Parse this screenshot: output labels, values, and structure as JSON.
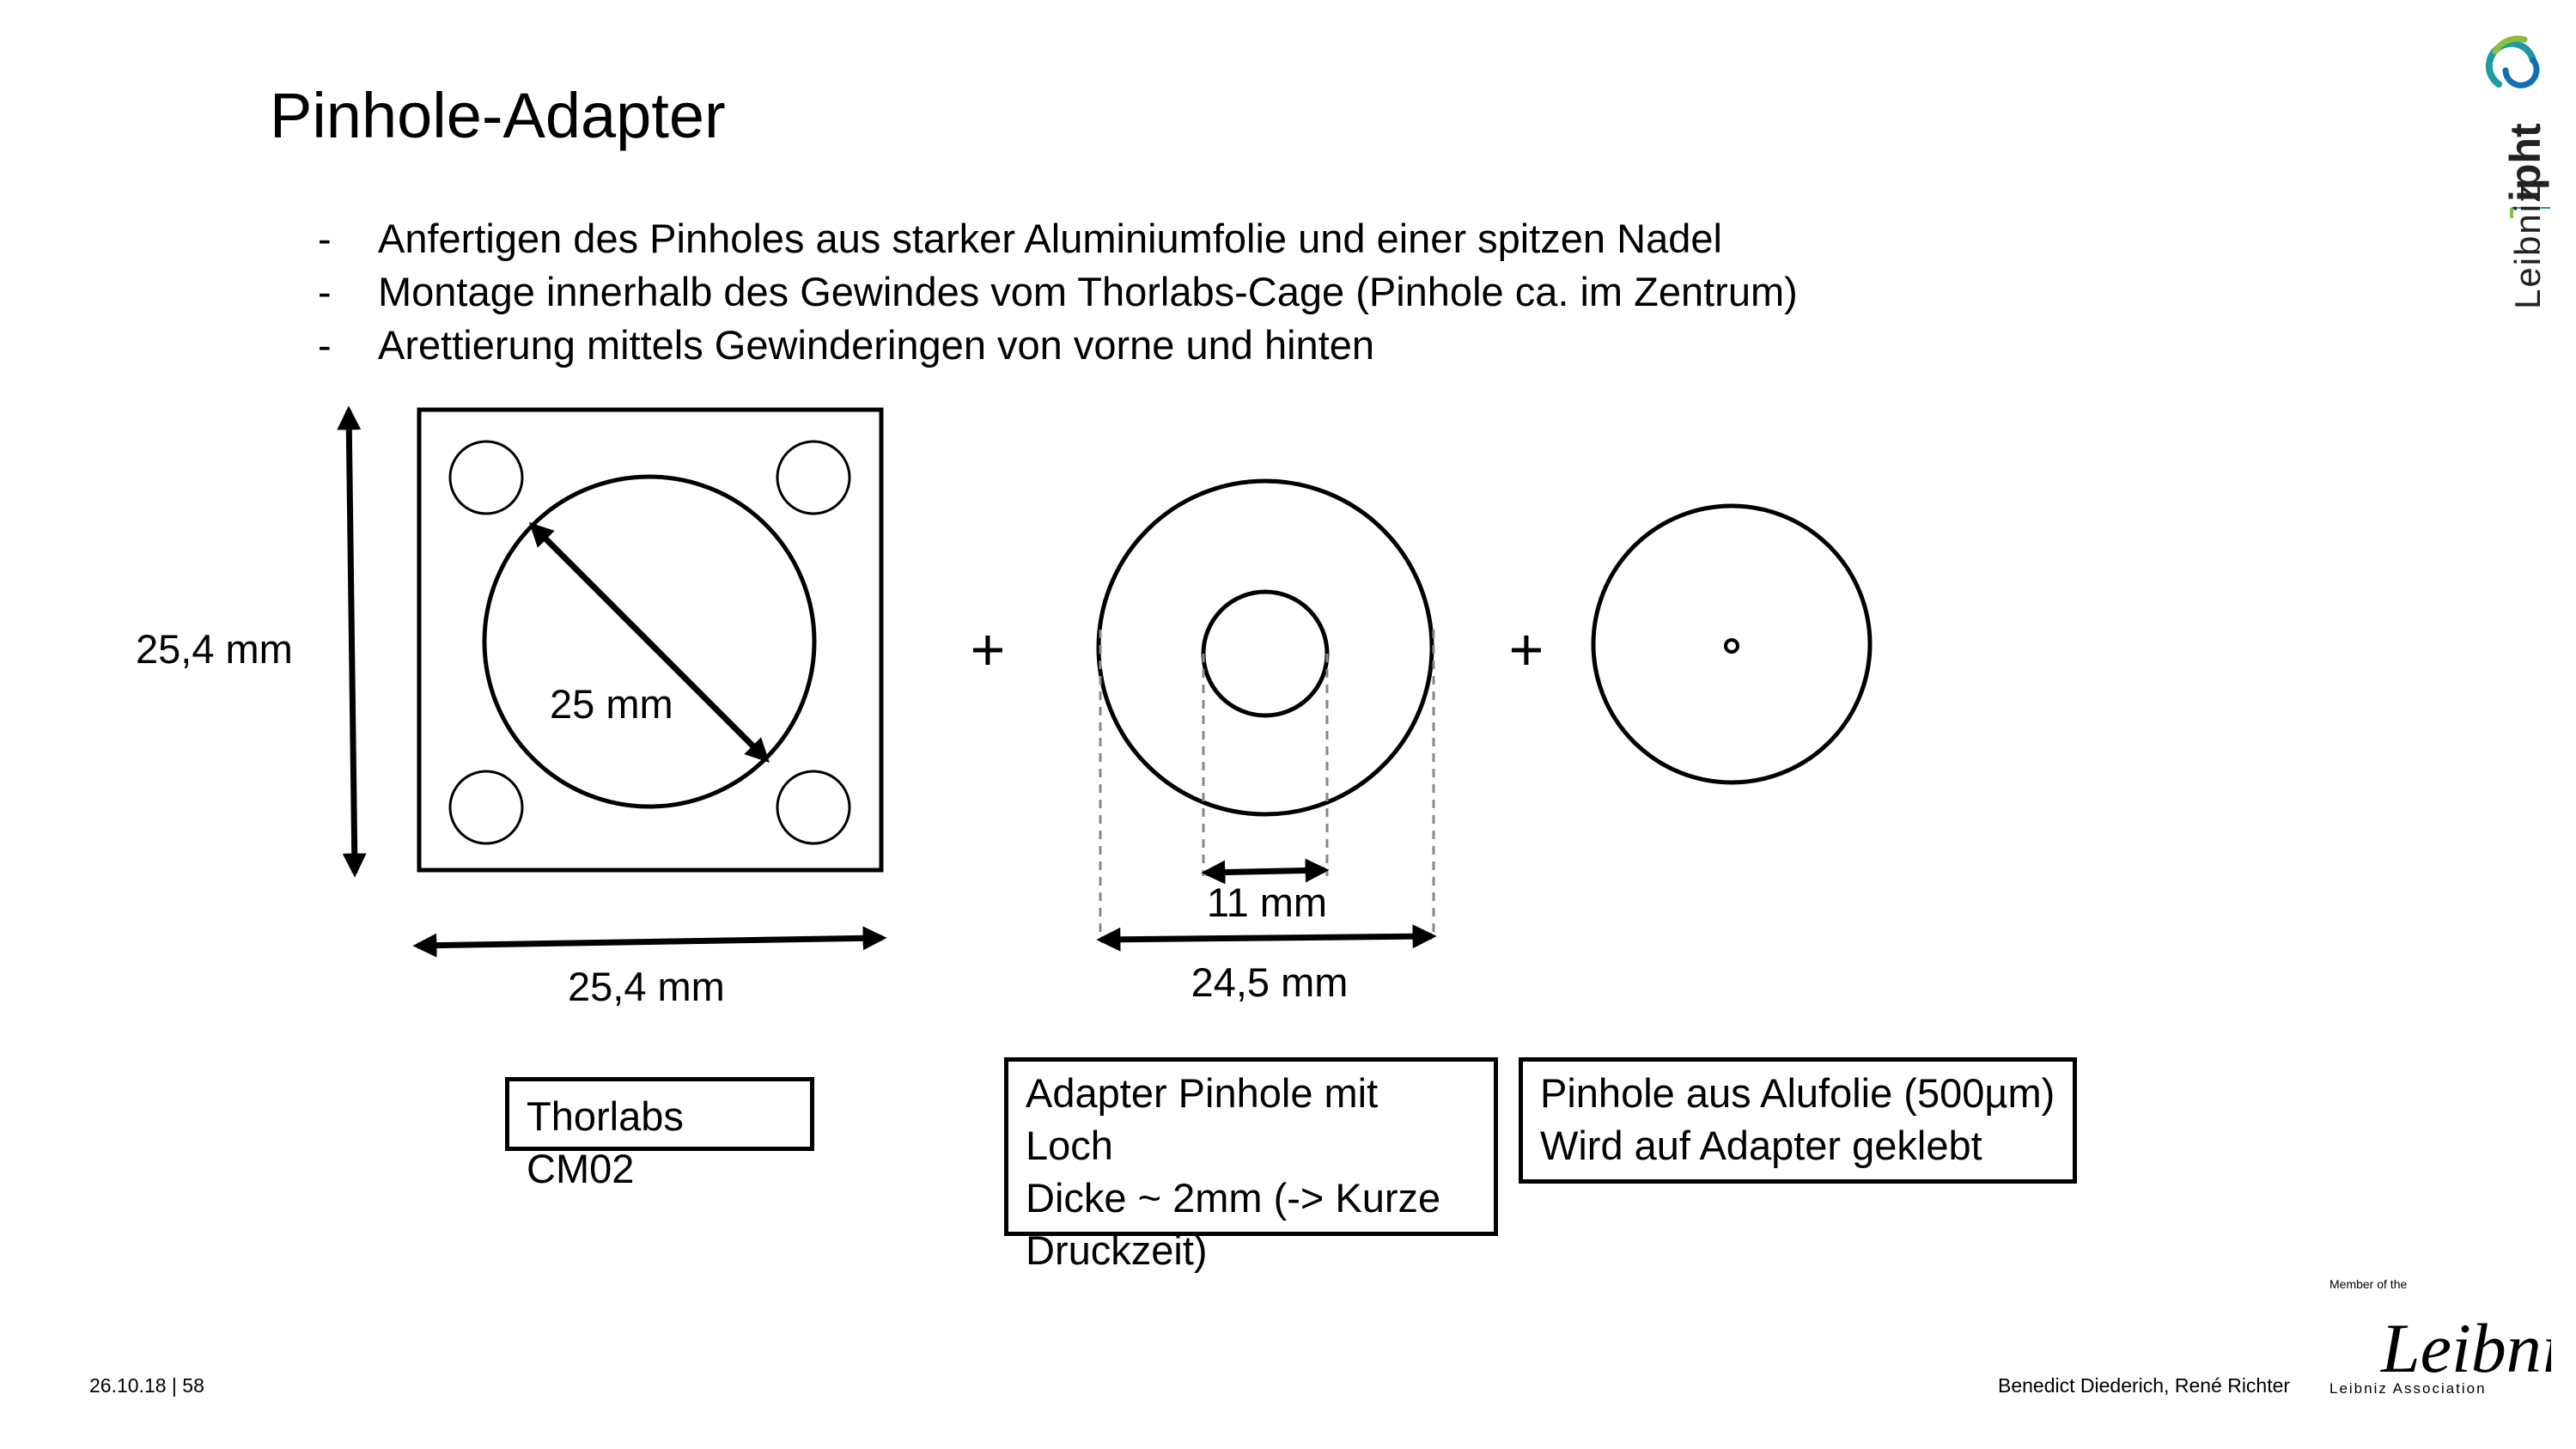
{
  "slide": {
    "title": "Pinhole-Adapter",
    "bullets": [
      "Anfertigen des Pinholes aus starker Aluminiumfolie und einer spitzen Nadel",
      "Montage innerhalb des Gewindes vom Thorlabs-Cage (Pinhole ca. im Zentrum)",
      "Arettierung mittels Gewinderingen von vorne und hinten"
    ],
    "bullet_marker": "-"
  },
  "diagram": {
    "height_label": "25,4 mm",
    "width_label": "25,4 mm",
    "bore_label": "25 mm",
    "plus_1": "+",
    "plus_2": "+",
    "inner_label": "11 mm",
    "outer_label": "24,5 mm"
  },
  "boxes": {
    "thorlabs": "Thorlabs CM02",
    "adapter": [
      "Adapter Pinhole mit Loch",
      "Dicke ~ 2mm (-> Kurze",
      "Druckzeit)"
    ],
    "pinhole": [
      "Pinhole aus Alufolie (500µm)",
      "Wird auf Adapter geklebt"
    ]
  },
  "footer": {
    "date_page": "26.10.18 | 58",
    "authors": "Benedict Diederich, René Richter"
  },
  "logos": {
    "ipht_text_leibniz": "Leibniz",
    "ipht_text_ipht": "ipht",
    "member_of": "Member of the",
    "leibniz_script": "Leibniz",
    "leibniz_association": "Leibniz Association"
  },
  "colors": {
    "logo_green": "#8dbf3f",
    "logo_blue": "#0f6fb0",
    "logo_teal": "#1f9aa0",
    "dashed_gray": "#888888"
  }
}
